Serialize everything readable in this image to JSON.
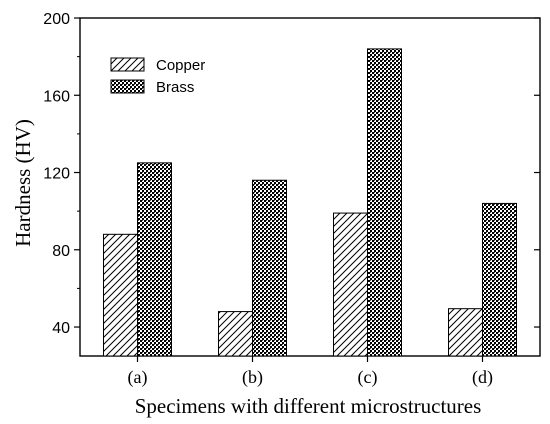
{
  "chart_data": {
    "type": "bar",
    "categories": [
      "(a)",
      "(b)",
      "(c)",
      "(d)"
    ],
    "series": [
      {
        "name": "Copper",
        "values": [
          88,
          48,
          99,
          49.5
        ],
        "pattern": "diagonal-hatch"
      },
      {
        "name": "Brass",
        "values": [
          125,
          116,
          184,
          104
        ],
        "pattern": "crosshatch-dots"
      }
    ],
    "ylabel": "Hardness (HV)",
    "xlabel": "Specimens with different microstructures",
    "ylim": [
      25,
      200
    ],
    "yticks": [
      40,
      80,
      120,
      160,
      200
    ],
    "ytick_labels": [
      "40",
      "80",
      "120",
      "160",
      "200"
    ],
    "grid": false,
    "legend_position": "top-left",
    "colors": {
      "axis": "#000000",
      "bar_stroke": "#000000",
      "background": "#ffffff"
    }
  }
}
